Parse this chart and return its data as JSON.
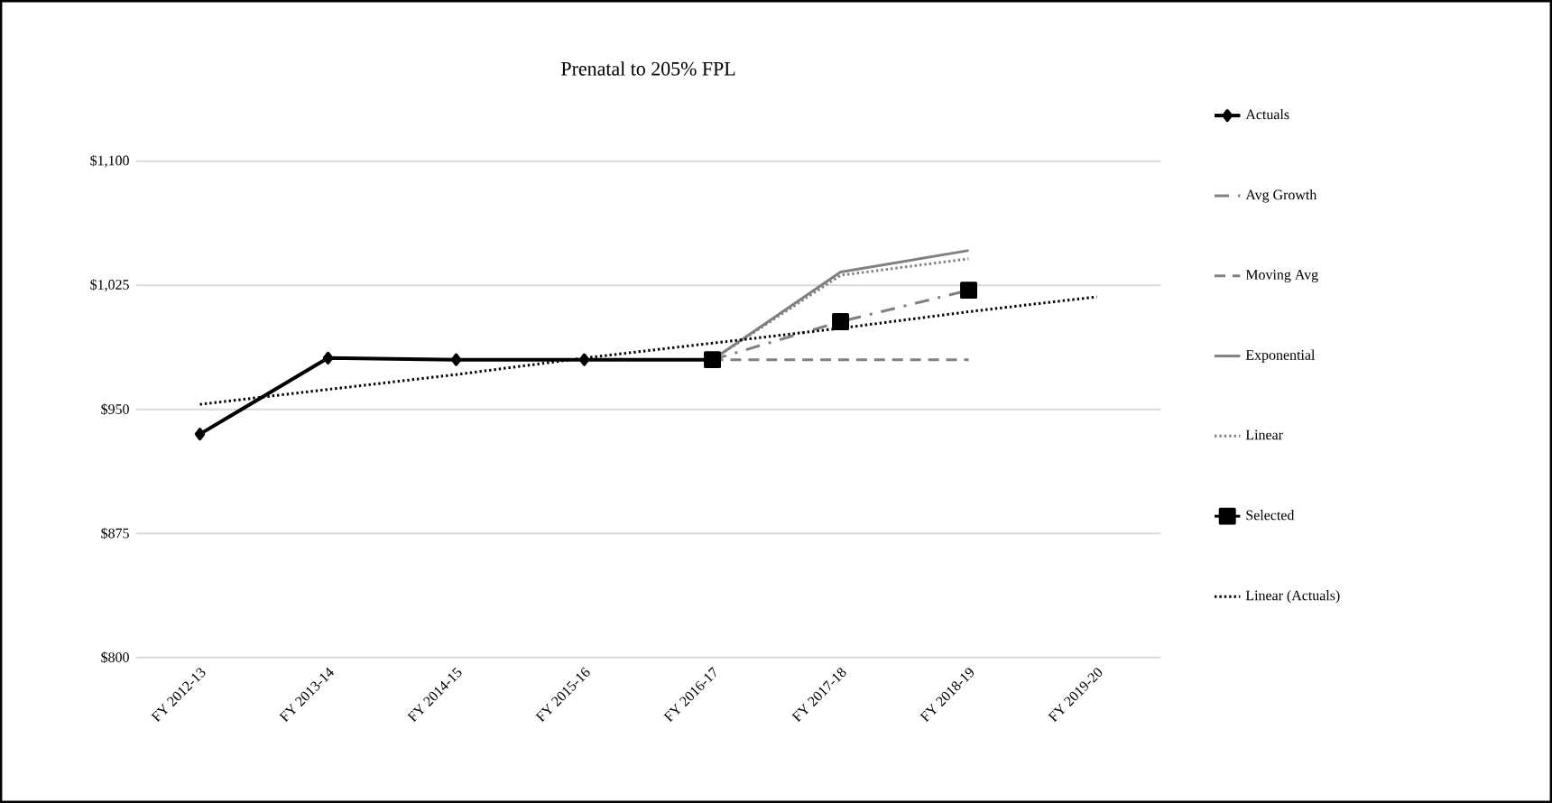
{
  "chart_data": {
    "type": "line",
    "title": "Prenatal to 205% FPL",
    "categories": [
      "FY 2012-13",
      "FY 2013-14",
      "FY 2014-15",
      "FY 2015-16",
      "FY 2016-17",
      "FY 2017-18",
      "FY 2018-19",
      "FY 2019-20"
    ],
    "series": [
      {
        "name": "Actuals",
        "color": "#000000",
        "line_style": "solid",
        "marker": "diamond",
        "values": [
          935,
          981,
          980,
          980,
          980,
          null,
          null,
          null
        ]
      },
      {
        "name": "Avg Growth",
        "color": "#808080",
        "line_style": "dashdot",
        "marker": "none",
        "values": [
          null,
          null,
          null,
          null,
          980,
          1003,
          1022,
          null
        ]
      },
      {
        "name": "Moving Avg",
        "color": "#808080",
        "line_style": "dashed",
        "marker": "none",
        "values": [
          null,
          null,
          null,
          null,
          980,
          980,
          980,
          null
        ]
      },
      {
        "name": "Exponential",
        "color": "#808080",
        "line_style": "solid",
        "marker": "none",
        "values": [
          null,
          null,
          null,
          null,
          980,
          1033,
          1046,
          null
        ]
      },
      {
        "name": "Linear",
        "color": "#808080",
        "line_style": "dotted",
        "marker": "none",
        "values": [
          null,
          null,
          null,
          null,
          980,
          1031,
          1041,
          null
        ]
      },
      {
        "name": "Selected",
        "type": "scatter",
        "color": "#000000",
        "marker": "square",
        "values": [
          null,
          null,
          null,
          null,
          980,
          1003,
          1022,
          null
        ]
      },
      {
        "name": "Linear (Actuals)",
        "color": "#000000",
        "line_style": "dotted",
        "marker": "none",
        "values": [
          953,
          962,
          971,
          981,
          990,
          999,
          1009,
          1018
        ]
      }
    ],
    "ylim": [
      800,
      1100
    ],
    "yticks": [
      {
        "value": 800,
        "label": "$800"
      },
      {
        "value": 875,
        "label": "$875"
      },
      {
        "value": 950,
        "label": "$950"
      },
      {
        "value": 1025,
        "label": "$1,025"
      },
      {
        "value": 1100,
        "label": "$1,100"
      }
    ],
    "grid": "y",
    "legend": "right"
  }
}
